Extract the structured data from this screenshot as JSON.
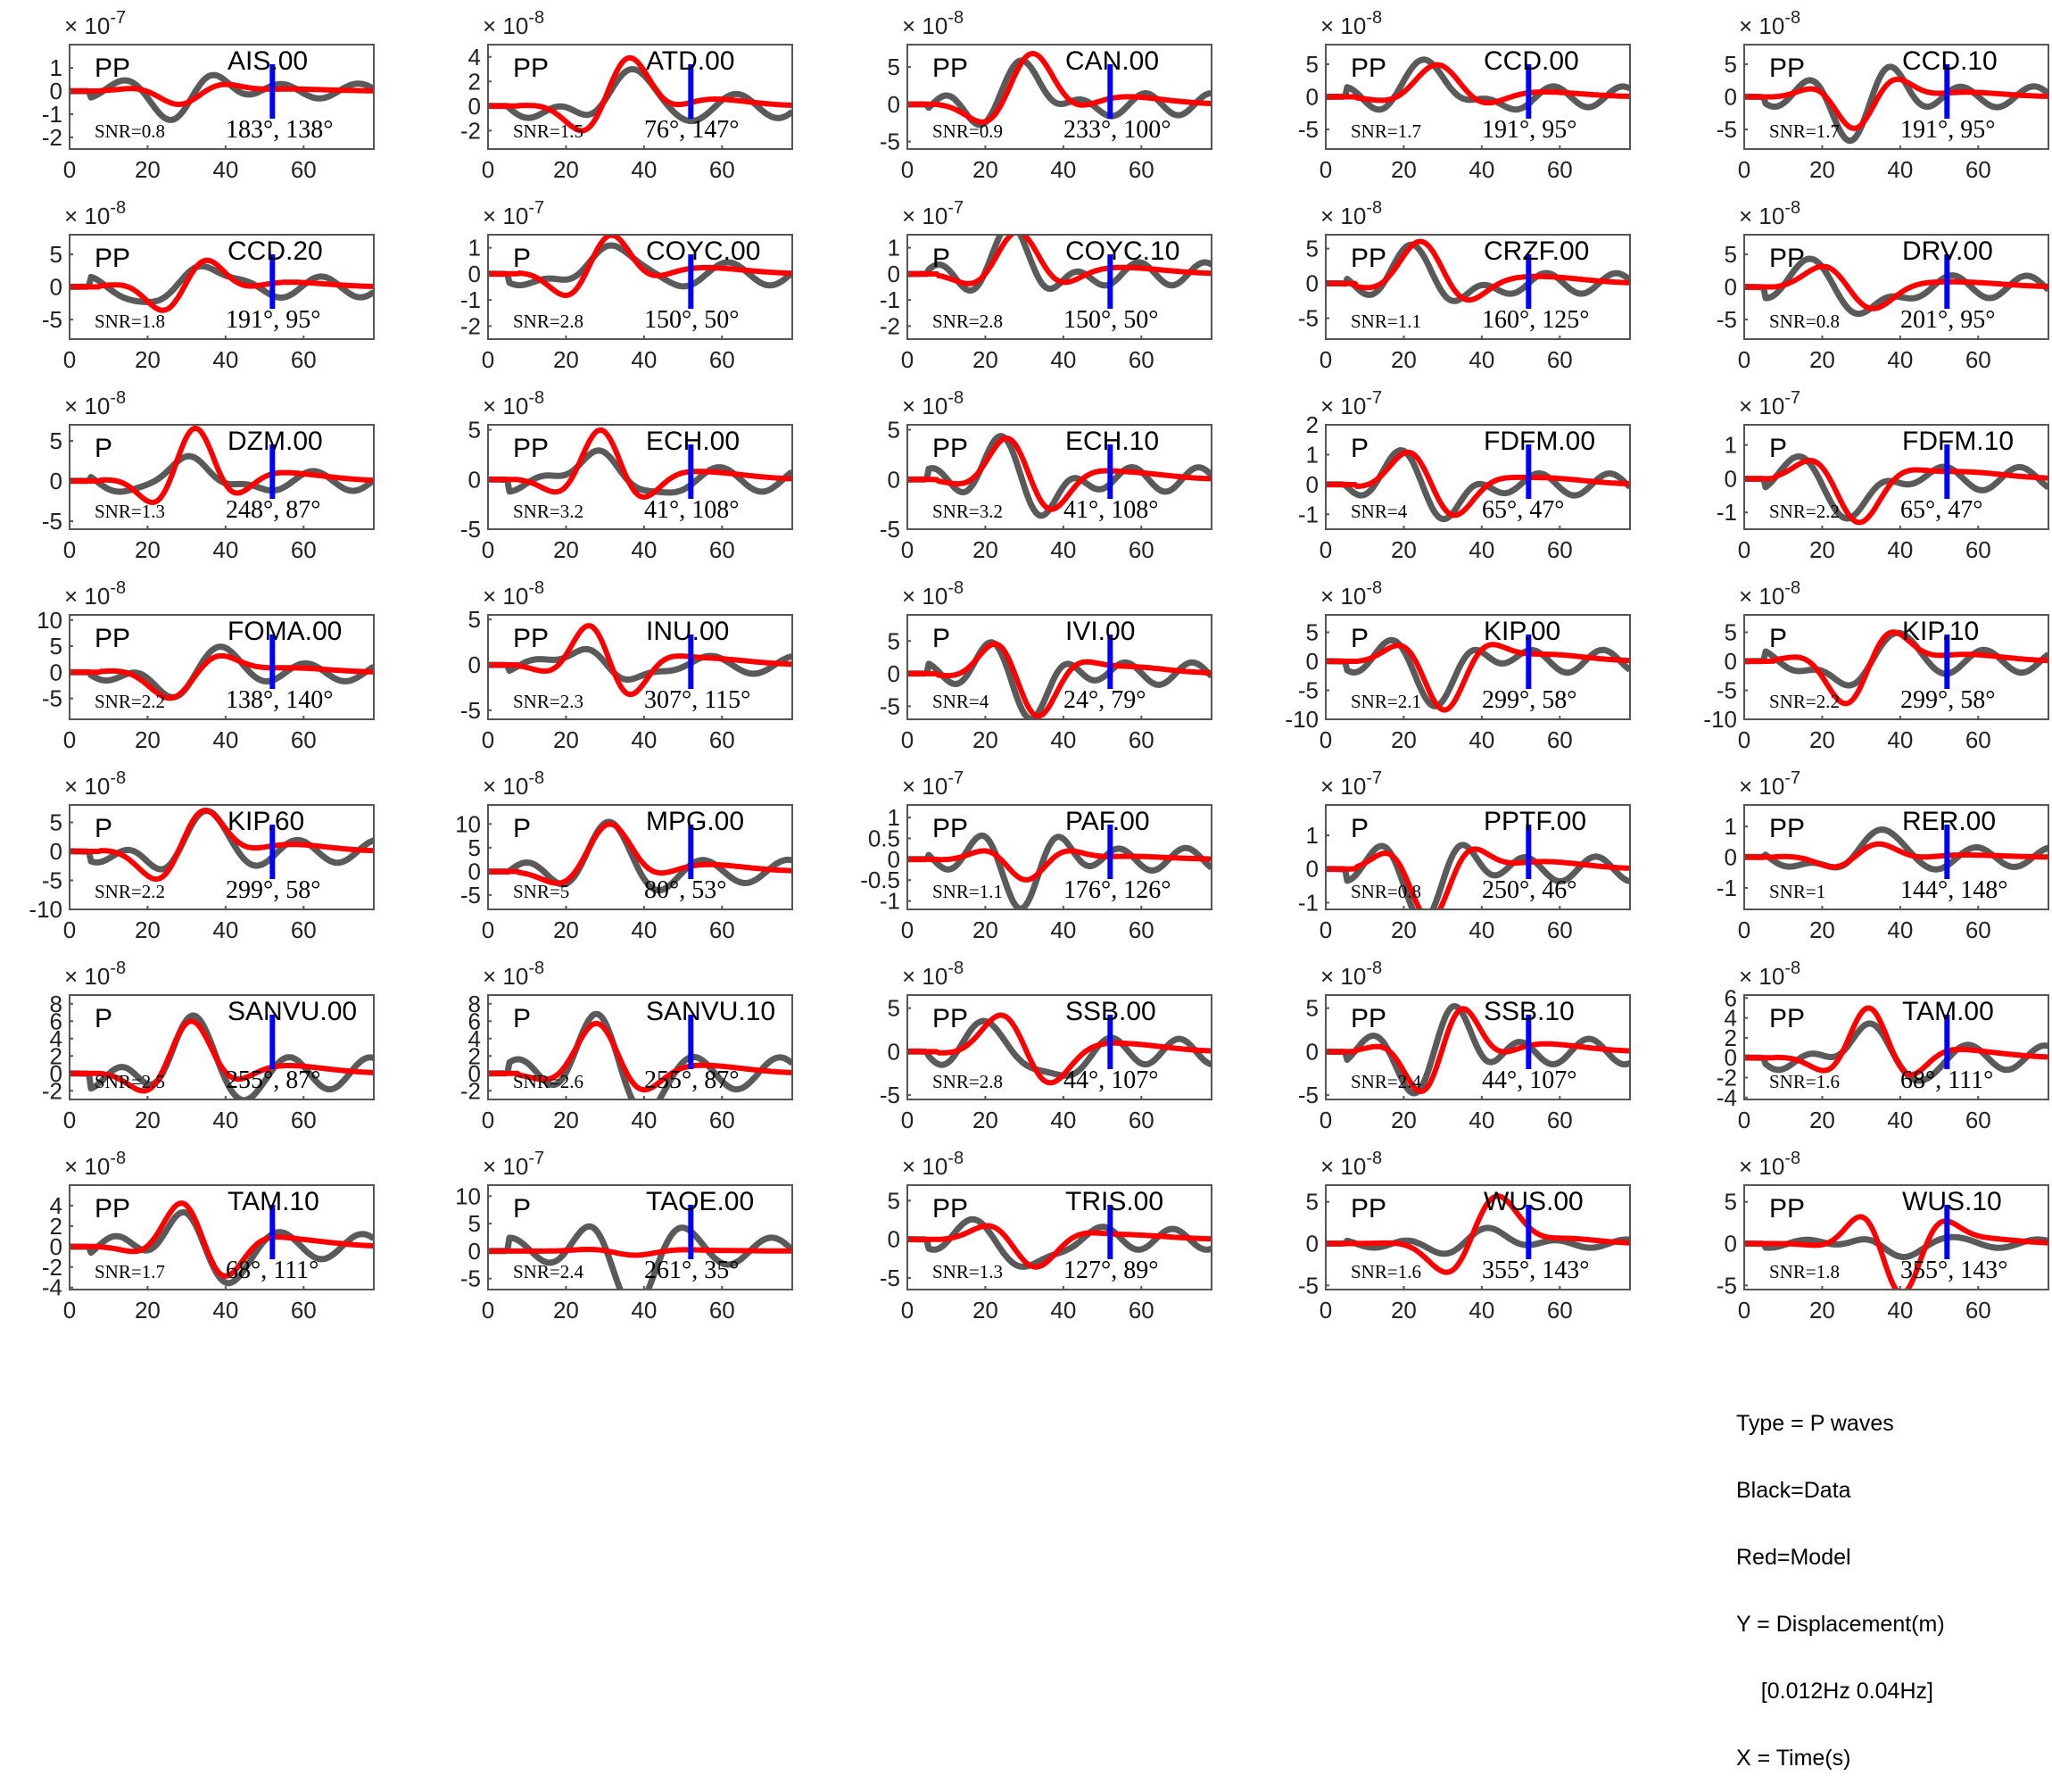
{
  "legend": {
    "lines": [
      "Type = P waves",
      "Black=Data",
      "Red=Model",
      "Y = Displacement(m)",
      "    [0.012Hz 0.04Hz]",
      "X = Time(s)"
    ]
  },
  "colors": {
    "data": "#5a5a5a",
    "model": "#ff0000",
    "marker": "#0000ff",
    "axis": "#555555"
  },
  "chart_data": [
    {
      "type": "line",
      "station": "AIS.00",
      "phase": "PP",
      "snr": "SNR=0.8",
      "angles": "183°, 138°",
      "exponent": "-7",
      "ylim": [
        -2.5,
        2
      ],
      "yticks": [
        "1",
        "0",
        "-1",
        "-2"
      ],
      "ytick_values": [
        1,
        0,
        -1,
        -2
      ],
      "xticks": [
        "0",
        "20",
        "40",
        "60"
      ],
      "data_amp": 1.3,
      "model_amp": 0.6,
      "phase_shift": 0.0,
      "seed": 1
    },
    {
      "type": "line",
      "station": "ATD.00",
      "phase": "PP",
      "snr": "SNR=1.5",
      "angles": "76°, 147°",
      "exponent": "-8",
      "ylim": [
        -3.5,
        5
      ],
      "yticks": [
        "4",
        "2",
        "0",
        "-2"
      ],
      "ytick_values": [
        4,
        2,
        0,
        -2
      ],
      "xticks": [
        "0",
        "20",
        "40",
        "60"
      ],
      "data_amp": 4,
      "model_amp": 4.2,
      "phase_shift": 0.1,
      "seed": 2
    },
    {
      "type": "line",
      "station": "CAN.00",
      "phase": "PP",
      "snr": "SNR=0.9",
      "angles": "233°, 100°",
      "exponent": "-8",
      "ylim": [
        -6,
        8
      ],
      "yticks": [
        "5",
        "0",
        "-5"
      ],
      "ytick_values": [
        5,
        0,
        -5
      ],
      "xticks": [
        "0",
        "20",
        "40",
        "60"
      ],
      "data_amp": 6,
      "model_amp": 7,
      "phase_shift": 0.0,
      "seed": 3
    },
    {
      "type": "line",
      "station": "CCD.00",
      "phase": "PP",
      "snr": "SNR=1.7",
      "angles": "191°, 95°",
      "exponent": "-8",
      "ylim": [
        -8,
        8
      ],
      "yticks": [
        "5",
        "0",
        "-5"
      ],
      "ytick_values": [
        5,
        0,
        -5
      ],
      "xticks": [
        "0",
        "20",
        "40",
        "60"
      ],
      "data_amp": 6.5,
      "model_amp": 5,
      "phase_shift": 0.0,
      "seed": 4
    },
    {
      "type": "line",
      "station": "CCD.10",
      "phase": "PP",
      "snr": "SNR=1.7",
      "angles": "191°, 95°",
      "exponent": "-8",
      "ylim": [
        -8,
        8
      ],
      "yticks": [
        "5",
        "0",
        "-5"
      ],
      "ytick_values": [
        5,
        0,
        -5
      ],
      "xticks": [
        "0",
        "20",
        "40",
        "60"
      ],
      "data_amp": 6.5,
      "model_amp": 5,
      "phase_shift": 0.0,
      "seed": 5
    },
    {
      "type": "line",
      "station": "CCD.20",
      "phase": "PP",
      "snr": "SNR=1.8",
      "angles": "191°, 95°",
      "exponent": "-8",
      "ylim": [
        -8,
        8
      ],
      "yticks": [
        "5",
        "0",
        "-5"
      ],
      "ytick_values": [
        5,
        0,
        -5
      ],
      "xticks": [
        "0",
        "20",
        "40",
        "60"
      ],
      "data_amp": 6.5,
      "model_amp": 5,
      "phase_shift": 0.0,
      "seed": 6
    },
    {
      "type": "line",
      "station": "COYC.00",
      "phase": "P",
      "snr": "SNR=2.8",
      "angles": "150°, 50°",
      "exponent": "-7",
      "ylim": [
        -2.5,
        1.5
      ],
      "yticks": [
        "1",
        "0",
        "-1",
        "-2"
      ],
      "ytick_values": [
        1,
        0,
        -1,
        -2
      ],
      "xticks": [
        "0",
        "20",
        "40",
        "60"
      ],
      "data_amp": 1.8,
      "model_amp": 1.6,
      "phase_shift": -0.05,
      "seed": 7
    },
    {
      "type": "line",
      "station": "COYC.10",
      "phase": "P",
      "snr": "SNR=2.8",
      "angles": "150°, 50°",
      "exponent": "-7",
      "ylim": [
        -2.5,
        1.5
      ],
      "yticks": [
        "1",
        "0",
        "-1",
        "-2"
      ],
      "ytick_values": [
        1,
        0,
        -1,
        -2
      ],
      "xticks": [
        "0",
        "20",
        "40",
        "60"
      ],
      "data_amp": 1.8,
      "model_amp": 1.6,
      "phase_shift": -0.05,
      "seed": 8
    },
    {
      "type": "line",
      "station": "CRZF.00",
      "phase": "PP",
      "snr": "SNR=1.1",
      "angles": "160°, 125°",
      "exponent": "-8",
      "ylim": [
        -8,
        7
      ],
      "yticks": [
        "5",
        "0",
        "-5"
      ],
      "ytick_values": [
        5,
        0,
        -5
      ],
      "xticks": [
        "0",
        "20",
        "40",
        "60"
      ],
      "data_amp": 6,
      "model_amp": 6.5,
      "phase_shift": -0.1,
      "seed": 9
    },
    {
      "type": "line",
      "station": "DRV.00",
      "phase": "PP",
      "snr": "SNR=0.8",
      "angles": "201°, 95°",
      "exponent": "-8",
      "ylim": [
        -8,
        8
      ],
      "yticks": [
        "5",
        "0",
        "-5"
      ],
      "ytick_values": [
        5,
        0,
        -5
      ],
      "xticks": [
        "0",
        "20",
        "40",
        "60"
      ],
      "data_amp": 7,
      "model_amp": 5,
      "phase_shift": -0.1,
      "seed": 10
    },
    {
      "type": "line",
      "station": "DZM.00",
      "phase": "P",
      "snr": "SNR=1.3",
      "angles": "248°, 87°",
      "exponent": "-8",
      "ylim": [
        -6,
        7
      ],
      "yticks": [
        "5",
        "0",
        "-5"
      ],
      "ytick_values": [
        5,
        0,
        -5
      ],
      "xticks": [
        "0",
        "20",
        "40",
        "60"
      ],
      "data_amp": 5,
      "model_amp": 6.5,
      "phase_shift": 0.05,
      "seed": 11
    },
    {
      "type": "line",
      "station": "ECH.00",
      "phase": "PP",
      "snr": "SNR=3.2",
      "angles": "41°, 108°",
      "exponent": "-8",
      "ylim": [
        -5,
        5.5
      ],
      "yticks": [
        "5",
        "0",
        "-5"
      ],
      "ytick_values": [
        5,
        0,
        -5
      ],
      "xticks": [
        "0",
        "20",
        "40",
        "60"
      ],
      "data_amp": 5,
      "model_amp": 5,
      "phase_shift": 0.0,
      "seed": 12
    },
    {
      "type": "line",
      "station": "ECH.10",
      "phase": "PP",
      "snr": "SNR=3.2",
      "angles": "41°, 108°",
      "exponent": "-8",
      "ylim": [
        -5,
        5.5
      ],
      "yticks": [
        "5",
        "0",
        "-5"
      ],
      "ytick_values": [
        5,
        0,
        -5
      ],
      "xticks": [
        "0",
        "20",
        "40",
        "60"
      ],
      "data_amp": 5,
      "model_amp": 5,
      "phase_shift": 0.0,
      "seed": 13
    },
    {
      "type": "line",
      "station": "FDFM.00",
      "phase": "P",
      "snr": "SNR=4",
      "angles": "65°, 47°",
      "exponent": "-7",
      "ylim": [
        -1.5,
        2
      ],
      "yticks": [
        "2",
        "1",
        "0",
        "-1"
      ],
      "ytick_values": [
        2,
        1,
        0,
        -1
      ],
      "xticks": [
        "0",
        "20",
        "40",
        "60"
      ],
      "data_amp": 1.5,
      "model_amp": 1.5,
      "phase_shift": -0.1,
      "seed": 14
    },
    {
      "type": "line",
      "station": "FDFM.10",
      "phase": "P",
      "snr": "SNR=2.2",
      "angles": "65°, 47°",
      "exponent": "-7",
      "ylim": [
        -1.5,
        1.6
      ],
      "yticks": [
        "1",
        "0",
        "-1"
      ],
      "ytick_values": [
        1,
        0,
        -1
      ],
      "xticks": [
        "0",
        "20",
        "40",
        "60"
      ],
      "data_amp": 1.4,
      "model_amp": 1.4,
      "phase_shift": -0.1,
      "seed": 15
    },
    {
      "type": "line",
      "station": "FOMA.00",
      "phase": "PP",
      "snr": "SNR=2.2",
      "angles": "138°, 140°",
      "exponent": "-8",
      "ylim": [
        -9,
        11
      ],
      "yticks": [
        "10",
        "5",
        "0",
        "-5"
      ],
      "ytick_values": [
        10,
        5,
        0,
        -5
      ],
      "xticks": [
        "0",
        "20",
        "40",
        "60"
      ],
      "data_amp": 7,
      "model_amp": 6,
      "phase_shift": 0.0,
      "seed": 16
    },
    {
      "type": "line",
      "station": "INU.00",
      "phase": "PP",
      "snr": "SNR=2.3",
      "angles": "307°, 115°",
      "exponent": "-8",
      "ylim": [
        -6,
        5.5
      ],
      "yticks": [
        "5",
        "0",
        "-5"
      ],
      "ytick_values": [
        5,
        0,
        -5
      ],
      "xticks": [
        "0",
        "20",
        "40",
        "60"
      ],
      "data_amp": 4,
      "model_amp": 5,
      "phase_shift": 0.0,
      "seed": 17
    },
    {
      "type": "line",
      "station": "IVI.00",
      "phase": "P",
      "snr": "SNR=4",
      "angles": "24°, 79°",
      "exponent": "-8",
      "ylim": [
        -7,
        9
      ],
      "yticks": [
        "5",
        "0",
        "-5"
      ],
      "ytick_values": [
        5,
        0,
        -5
      ],
      "xticks": [
        "0",
        "20",
        "40",
        "60"
      ],
      "data_amp": 7,
      "model_amp": 7.5,
      "phase_shift": 0.0,
      "seed": 18
    },
    {
      "type": "line",
      "station": "KIP.00",
      "phase": "P",
      "snr": "SNR=2.1",
      "angles": "299°, 58°",
      "exponent": "-8",
      "ylim": [
        -10,
        8
      ],
      "yticks": [
        "5",
        "0",
        "-5",
        "-10"
      ],
      "ytick_values": [
        5,
        0,
        -5,
        -10
      ],
      "xticks": [
        "0",
        "20",
        "40",
        "60"
      ],
      "data_amp": 8,
      "model_amp": 8.5,
      "phase_shift": 0.0,
      "seed": 19
    },
    {
      "type": "line",
      "station": "KIP.10",
      "phase": "P",
      "snr": "SNR=2.2",
      "angles": "299°, 58°",
      "exponent": "-8",
      "ylim": [
        -10,
        8
      ],
      "yticks": [
        "5",
        "0",
        "-5",
        "-10"
      ],
      "ytick_values": [
        5,
        0,
        -5,
        -10
      ],
      "xticks": [
        "0",
        "20",
        "40",
        "60"
      ],
      "data_amp": 8,
      "model_amp": 8.5,
      "phase_shift": 0.0,
      "seed": 20
    },
    {
      "type": "line",
      "station": "KIP.60",
      "phase": "P",
      "snr": "SNR=2.2",
      "angles": "299°, 58°",
      "exponent": "-8",
      "ylim": [
        -10,
        8
      ],
      "yticks": [
        "5",
        "0",
        "-5",
        "-10"
      ],
      "ytick_values": [
        5,
        0,
        -5,
        -10
      ],
      "xticks": [
        "0",
        "20",
        "40",
        "60"
      ],
      "data_amp": 8,
      "model_amp": 8.5,
      "phase_shift": 0.0,
      "seed": 21
    },
    {
      "type": "line",
      "station": "MPG.00",
      "phase": "P",
      "snr": "SNR=5",
      "angles": "80°, 53°",
      "exponent": "-8",
      "ylim": [
        -8,
        14
      ],
      "yticks": [
        "10",
        "5",
        "0",
        "-5"
      ],
      "ytick_values": [
        10,
        5,
        0,
        -5
      ],
      "xticks": [
        "0",
        "20",
        "40",
        "60"
      ],
      "data_amp": 10,
      "model_amp": 10,
      "phase_shift": 0.0,
      "seed": 22
    },
    {
      "type": "line",
      "station": "PAF.00",
      "phase": "PP",
      "snr": "SNR=1.1",
      "angles": "176°, 126°",
      "exponent": "-7",
      "ylim": [
        -1.2,
        1.3
      ],
      "yticks": [
        "1",
        "0.5",
        "0",
        "-0.5",
        "-1"
      ],
      "ytick_values": [
        1,
        0.5,
        0,
        -0.5,
        -1
      ],
      "xticks": [
        "0",
        "20",
        "40",
        "60"
      ],
      "data_amp": 1.1,
      "model_amp": 0.5,
      "phase_shift": 0.0,
      "seed": 23
    },
    {
      "type": "line",
      "station": "PPTF.00",
      "phase": "P",
      "snr": "SNR=0.8",
      "angles": "250°, 46°",
      "exponent": "-7",
      "ylim": [
        -1.2,
        1.9
      ],
      "yticks": [
        "1",
        "0",
        "-1"
      ],
      "ytick_values": [
        1,
        0,
        -1
      ],
      "xticks": [
        "0",
        "20",
        "40",
        "60"
      ],
      "data_amp": 1.5,
      "model_amp": 1.5,
      "phase_shift": -0.1,
      "seed": 24
    },
    {
      "type": "line",
      "station": "RER.00",
      "phase": "PP",
      "snr": "SNR=1",
      "angles": "144°, 148°",
      "exponent": "-7",
      "ylim": [
        -1.7,
        1.7
      ],
      "yticks": [
        "1",
        "0",
        "-1"
      ],
      "ytick_values": [
        1,
        0,
        -1
      ],
      "xticks": [
        "0",
        "20",
        "40",
        "60"
      ],
      "data_amp": 1.3,
      "model_amp": 0.5,
      "phase_shift": 0.0,
      "seed": 25
    },
    {
      "type": "line",
      "station": "SANVU.00",
      "phase": "P",
      "snr": "SNR=2.5",
      "angles": "255°, 87°",
      "exponent": "-8",
      "ylim": [
        -3,
        9
      ],
      "yticks": [
        "8",
        "6",
        "4",
        "2",
        "0",
        "-2"
      ],
      "ytick_values": [
        8,
        6,
        4,
        2,
        0,
        -2
      ],
      "xticks": [
        "0",
        "20",
        "40",
        "60"
      ],
      "data_amp": 7.5,
      "model_amp": 6,
      "phase_shift": 0.0,
      "seed": 26
    },
    {
      "type": "line",
      "station": "SANVU.10",
      "phase": "P",
      "snr": "SNR=2.6",
      "angles": "255°, 87°",
      "exponent": "-8",
      "ylim": [
        -3,
        9
      ],
      "yticks": [
        "8",
        "6",
        "4",
        "2",
        "0",
        "-2"
      ],
      "ytick_values": [
        8,
        6,
        4,
        2,
        0,
        -2
      ],
      "xticks": [
        "0",
        "20",
        "40",
        "60"
      ],
      "data_amp": 7.5,
      "model_amp": 6,
      "phase_shift": 0.0,
      "seed": 27
    },
    {
      "type": "line",
      "station": "SSB.00",
      "phase": "PP",
      "snr": "SNR=2.8",
      "angles": "44°, 107°",
      "exponent": "-8",
      "ylim": [
        -5.5,
        6.5
      ],
      "yticks": [
        "5",
        "0",
        "-5"
      ],
      "ytick_values": [
        5,
        0,
        -5
      ],
      "xticks": [
        "0",
        "20",
        "40",
        "60"
      ],
      "data_amp": 6,
      "model_amp": 6,
      "phase_shift": 0.0,
      "seed": 28
    },
    {
      "type": "line",
      "station": "SSB.10",
      "phase": "PP",
      "snr": "SNR=2.4",
      "angles": "44°, 107°",
      "exponent": "-8",
      "ylim": [
        -5.5,
        6.5
      ],
      "yticks": [
        "5",
        "0",
        "-5"
      ],
      "ytick_values": [
        5,
        0,
        -5
      ],
      "xticks": [
        "0",
        "20",
        "40",
        "60"
      ],
      "data_amp": 6,
      "model_amp": 6,
      "phase_shift": 0.0,
      "seed": 29
    },
    {
      "type": "line",
      "station": "TAM.00",
      "phase": "PP",
      "snr": "SNR=1.6",
      "angles": "68°, 111°",
      "exponent": "-8",
      "ylim": [
        -4.2,
        6.3
      ],
      "yticks": [
        "6",
        "4",
        "2",
        "0",
        "-2",
        "-4"
      ],
      "ytick_values": [
        6,
        4,
        2,
        0,
        -2,
        -4
      ],
      "xticks": [
        "0",
        "20",
        "40",
        "60"
      ],
      "data_amp": 5,
      "model_amp": 5,
      "phase_shift": 0.1,
      "seed": 30
    },
    {
      "type": "line",
      "station": "TAM.10",
      "phase": "PP",
      "snr": "SNR=1.7",
      "angles": "68°, 111°",
      "exponent": "-8",
      "ylim": [
        -4.2,
        6
      ],
      "yticks": [
        "4",
        "2",
        "0",
        "-2",
        "-4"
      ],
      "ytick_values": [
        4,
        2,
        0,
        -2,
        -4
      ],
      "xticks": [
        "0",
        "20",
        "40",
        "60"
      ],
      "data_amp": 5,
      "model_amp": 5,
      "phase_shift": 0.1,
      "seed": 31
    },
    {
      "type": "line",
      "station": "TAOE.00",
      "phase": "P",
      "snr": "SNR=2.4",
      "angles": "261°, 35°",
      "exponent": "-7",
      "ylim": [
        -7,
        12
      ],
      "yticks": [
        "10",
        "5",
        "0",
        "-5"
      ],
      "ytick_values": [
        10,
        5,
        0,
        -5
      ],
      "xticks": [
        "0",
        "20",
        "40",
        "60"
      ],
      "data_amp": 10,
      "model_amp": 0.8,
      "phase_shift": 0.2,
      "seed": 32
    },
    {
      "type": "line",
      "station": "TRIS.00",
      "phase": "PP",
      "snr": "SNR=1.3",
      "angles": "127°, 89°",
      "exponent": "-8",
      "ylim": [
        -6.5,
        7
      ],
      "yticks": [
        "5",
        "0",
        "-5"
      ],
      "ytick_values": [
        5,
        0,
        -5
      ],
      "xticks": [
        "0",
        "20",
        "40",
        "60"
      ],
      "data_amp": 5.5,
      "model_amp": 4,
      "phase_shift": 0.0,
      "seed": 33
    },
    {
      "type": "line",
      "station": "WUS.00",
      "phase": "PP",
      "snr": "SNR=1.6",
      "angles": "355°, 143°",
      "exponent": "-8",
      "ylim": [
        -5.5,
        7
      ],
      "yticks": [
        "5",
        "0",
        "-5"
      ],
      "ytick_values": [
        5,
        0,
        -5
      ],
      "xticks": [
        "0",
        "20",
        "40",
        "60"
      ],
      "data_amp": 2,
      "model_amp": 6.5,
      "phase_shift": 0.3,
      "seed": 34
    },
    {
      "type": "line",
      "station": "WUS.10",
      "phase": "PP",
      "snr": "SNR=1.8",
      "angles": "355°, 143°",
      "exponent": "-8",
      "ylim": [
        -5.5,
        7
      ],
      "yticks": [
        "5",
        "0",
        "-5"
      ],
      "ytick_values": [
        5,
        0,
        -5
      ],
      "xticks": [
        "0",
        "20",
        "40",
        "60"
      ],
      "data_amp": 2,
      "model_amp": 6.5,
      "phase_shift": 0.3,
      "seed": 35
    }
  ]
}
